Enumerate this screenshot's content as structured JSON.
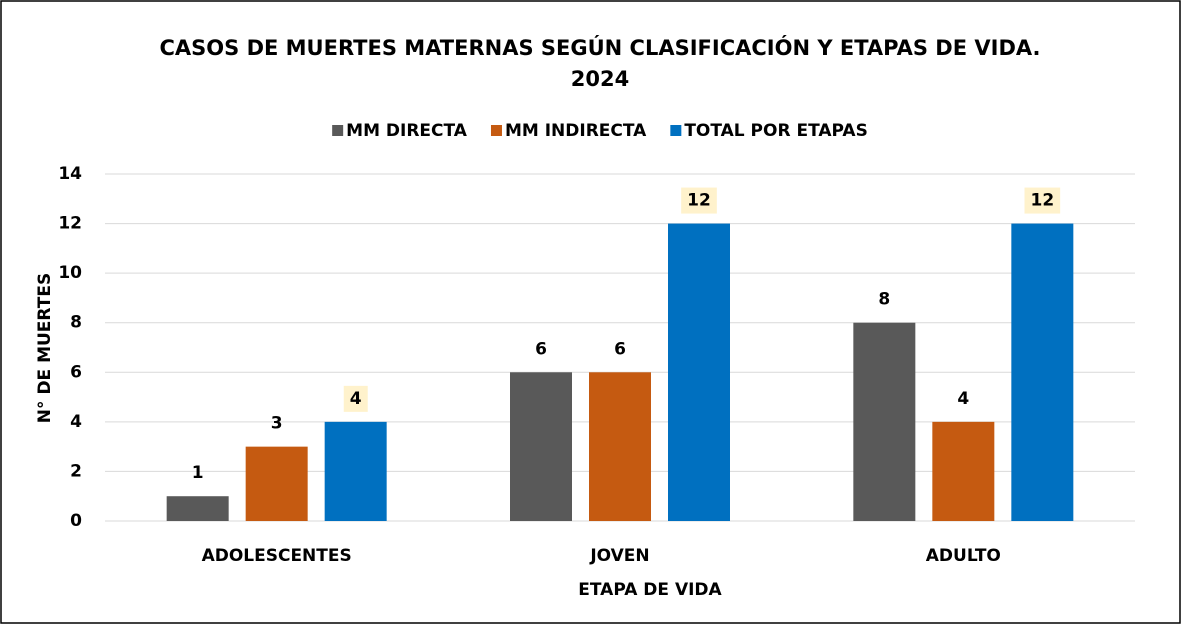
{
  "chart_data": {
    "type": "bar",
    "title_lines": [
      "CASOS DE MUERTES MATERNAS  SEGÚN CLASIFICACIÓN Y  ETAPAS DE VIDA.",
      "2024"
    ],
    "x_label": "ETAPA DE VIDA",
    "y_label": "N° DE MUERTES",
    "categories": [
      "ADOLESCENTES",
      "JOVEN",
      "ADULTO"
    ],
    "series": [
      {
        "name": "MM DIRECTA",
        "color": "#595959",
        "values": [
          1,
          6,
          8
        ]
      },
      {
        "name": "MM INDIRECTA",
        "color": "#c55a11",
        "values": [
          3,
          6,
          4
        ]
      },
      {
        "name": "TOTAL POR ETAPAS",
        "color": "#0070c0",
        "values": [
          4,
          12,
          12
        ],
        "label_background": "#fff2cc"
      }
    ],
    "ylim": [
      0,
      14
    ],
    "yticks": [
      0,
      2,
      4,
      6,
      8,
      10,
      12,
      14
    ],
    "grid": true,
    "legend": "top"
  }
}
